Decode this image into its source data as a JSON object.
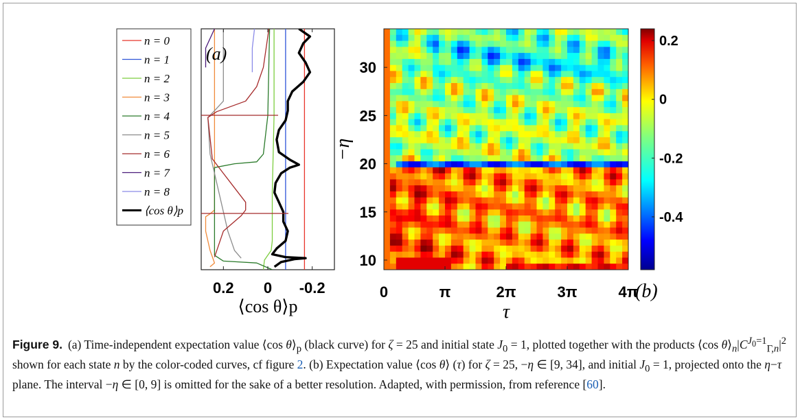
{
  "figure": {
    "label": "Figure 9.",
    "caption_html": "(a) Time-independent expectation value ⟨cos <i>θ</i>⟩<sub>p</sub> (black curve) for <i>ζ</i> = 25 and initial state <i>J</i><sub>0</sub> = 1, plotted together with the products ⟨cos <i>θ</i>⟩<sub><i>n</i></sub>|<i>C</i><sup><i>J</i><sub>0</sub>=1</sup><sub>Γ,<i>n</i></sub>|<sup>2</sup> shown for each state <i>n</i> by the color-coded curves, cf figure <span class=\"ref\">2</span>. (b) Expectation value ⟨cos <i>θ</i>⟩ (<i>τ</i>) for <i>ζ</i> = 25, −<i>η</i> ∈ [9, 34], and initial <i>J</i><sub>0</sub> = 1, projected onto the <i>η</i>−<i>τ</i> plane. The interval −<i>η</i> ∈ [0, 9] is omitted for the sake of a better resolution. Adapted, with permission, from reference [<span class=\"ref\">60</span>]."
  },
  "chart_data": [
    {
      "type": "line",
      "panel_label": "(a)",
      "xlabel": "⟨cos θ⟩p",
      "xlim": [
        0.3,
        -0.3
      ],
      "ylim": [
        9,
        34
      ],
      "x_ticks": [
        "0.2",
        "0",
        "-0.2"
      ],
      "x_tick_values": [
        0.2,
        0,
        -0.2
      ],
      "legend": [
        "n = 0",
        "n = 1",
        "n = 2",
        "n = 3",
        "n = 4",
        "n = 5",
        "n = 6",
        "n = 7",
        "n = 8",
        "⟨cos θ⟩p"
      ],
      "series": [
        {
          "name": "n = 0",
          "color": "#e8342a",
          "width": 1.3,
          "points": [
            [
              -0.165,
              9
            ],
            [
              -0.165,
              34
            ]
          ]
        },
        {
          "name": "n = 1",
          "color": "#2f54d8",
          "width": 1.3,
          "points": [
            [
              -0.08,
              9
            ],
            [
              -0.08,
              34
            ]
          ]
        },
        {
          "name": "n = 2",
          "color": "#7ccd3f",
          "width": 1.3,
          "points": [
            [
              0.02,
              9
            ],
            [
              0.015,
              10
            ],
            [
              0.0,
              10.5
            ],
            [
              -0.015,
              11
            ],
            [
              -0.02,
              12
            ],
            [
              -0.02,
              17
            ],
            [
              -0.028,
              25
            ],
            [
              -0.028,
              34
            ]
          ]
        },
        {
          "name": "n = 3",
          "color": "#f08a3a",
          "width": 1.3,
          "points": [
            [
              0.26,
              9.3
            ],
            [
              0.24,
              9.7
            ],
            [
              0.26,
              11
            ],
            [
              0.28,
              13
            ],
            [
              0.28,
              14.5
            ],
            [
              0.26,
              14.8
            ],
            [
              0.24,
              15.2
            ],
            [
              0.24,
              25
            ],
            [
              0.24,
              34
            ]
          ]
        },
        {
          "name": "n = 4",
          "color": "#2a7a2a",
          "width": 1.3,
          "points": [
            [
              -0.02,
              9
            ],
            [
              0.05,
              9.7
            ],
            [
              0.2,
              9.9
            ],
            [
              0.24,
              10.5
            ],
            [
              0.24,
              14.8
            ],
            [
              0.24,
              19.6
            ],
            [
              0.15,
              20.0
            ],
            [
              0.05,
              20.2
            ],
            [
              0.02,
              21
            ],
            [
              0.0,
              25
            ],
            [
              -0.008,
              34
            ]
          ]
        },
        {
          "name": "n = 5",
          "color": "#8c8c8c",
          "width": 1.3,
          "points": [
            [
              0.12,
              10.2
            ],
            [
              0.15,
              11
            ],
            [
              0.18,
              13
            ],
            [
              0.21,
              16
            ],
            [
              0.24,
              19
            ],
            [
              0.26,
              21
            ],
            [
              0.27,
              24.8
            ],
            [
              0.24,
              25.5
            ],
            [
              0.2,
              26.5
            ],
            [
              0.2,
              28
            ],
            [
              0.2,
              34
            ]
          ]
        },
        {
          "name": "n = 6",
          "color": "#a52a2a",
          "width": 1.3,
          "points": [
            [
              0.24,
              10.3
            ],
            [
              0.2,
              13
            ],
            [
              0.12,
              14.6
            ],
            [
              0.1,
              15.2
            ],
            [
              0.1,
              16
            ],
            [
              0.15,
              17.5
            ],
            [
              0.2,
              19
            ],
            [
              0.25,
              20.5
            ],
            [
              0.27,
              24.8
            ],
            [
              0.23,
              25.4
            ],
            [
              0.1,
              26.5
            ],
            [
              0.05,
              28
            ],
            [
              0.02,
              30
            ],
            [
              -0.005,
              34
            ]
          ]
        },
        {
          "name": "n = 7",
          "color": "#4a1a7a",
          "width": 1.3,
          "points": [
            [
              0.28,
              30
            ],
            [
              0.28,
              32
            ],
            [
              0.24,
              34
            ]
          ]
        },
        {
          "name": "n = 8",
          "color": "#8a8ae8",
          "width": 1.3,
          "points": [
            [
              0.07,
              29.5
            ],
            [
              0.07,
              32
            ],
            [
              0.06,
              34
            ]
          ]
        },
        {
          "name": "⟨cos θ⟩p",
          "color": "#000000",
          "width": 3.4,
          "points": [
            [
              -0.03,
              9.3
            ],
            [
              -0.06,
              9.8
            ],
            [
              -0.12,
              10.1
            ],
            [
              -0.17,
              10.2
            ],
            [
              -0.08,
              10.3
            ],
            [
              -0.02,
              10.6
            ],
            [
              -0.04,
              11.2
            ],
            [
              -0.08,
              12.0
            ],
            [
              -0.09,
              13.0
            ],
            [
              -0.07,
              14.0
            ],
            [
              -0.07,
              15.0
            ],
            [
              -0.05,
              16.0
            ],
            [
              -0.03,
              17.0
            ],
            [
              -0.035,
              18.0
            ],
            [
              -0.06,
              19.0
            ],
            [
              -0.1,
              19.6
            ],
            [
              -0.14,
              19.9
            ],
            [
              -0.1,
              20.4
            ],
            [
              -0.05,
              21.2
            ],
            [
              -0.04,
              22.5
            ],
            [
              -0.05,
              23.5
            ],
            [
              -0.08,
              24.5
            ],
            [
              -0.09,
              25.5
            ],
            [
              -0.09,
              26.5
            ],
            [
              -0.11,
              27.5
            ],
            [
              -0.16,
              28.5
            ],
            [
              -0.19,
              29.5
            ],
            [
              -0.17,
              30.5
            ],
            [
              -0.14,
              31.5
            ],
            [
              -0.16,
              32.5
            ],
            [
              -0.19,
              33.2
            ],
            [
              -0.14,
              34.0
            ]
          ]
        }
      ]
    },
    {
      "type": "heatmap",
      "panel_label": "(b)",
      "xlabel": "τ",
      "ylabel": "−η",
      "xlim": [
        0,
        12.566
      ],
      "ylim": [
        9,
        34
      ],
      "x_ticks": [
        "0",
        "π",
        "2π",
        "3π",
        "4π"
      ],
      "x_tick_values": [
        0,
        3.1416,
        6.2832,
        9.4248,
        12.566
      ],
      "y_ticks": [
        "10",
        "15",
        "20",
        "25",
        "30"
      ],
      "y_tick_values": [
        10,
        15,
        20,
        25,
        30
      ],
      "colorbar": {
        "range": [
          -0.58,
          0.24
        ],
        "ticks": [
          "0.2",
          "0",
          "-0.2",
          "-0.4"
        ],
        "tick_values": [
          0.2,
          0,
          -0.2,
          -0.4
        ],
        "colormap": [
          "#00008f",
          "#0000ff",
          "#0080ff",
          "#00ffff",
          "#80ff80",
          "#ffff00",
          "#ff8000",
          "#ff0000",
          "#800000"
        ]
      }
    }
  ]
}
